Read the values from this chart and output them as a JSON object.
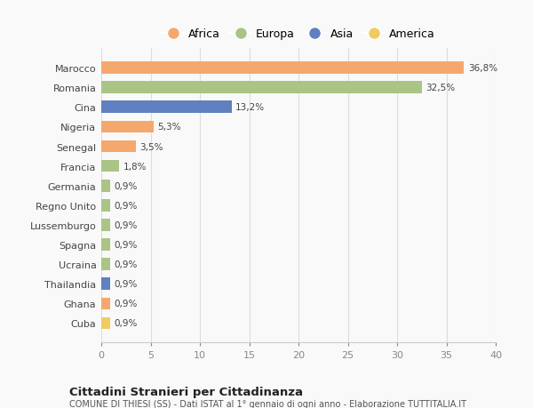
{
  "categories": [
    "Cuba",
    "Ghana",
    "Thailandia",
    "Ucraina",
    "Spagna",
    "Lussemburgo",
    "Regno Unito",
    "Germania",
    "Francia",
    "Senegal",
    "Nigeria",
    "Cina",
    "Romania",
    "Marocco"
  ],
  "values": [
    0.9,
    0.9,
    0.9,
    0.9,
    0.9,
    0.9,
    0.9,
    0.9,
    1.8,
    3.5,
    5.3,
    13.2,
    32.5,
    36.8
  ],
  "labels": [
    "0,9%",
    "0,9%",
    "0,9%",
    "0,9%",
    "0,9%",
    "0,9%",
    "0,9%",
    "0,9%",
    "1,8%",
    "3,5%",
    "5,3%",
    "13,2%",
    "32,5%",
    "36,8%"
  ],
  "continent_map": {
    "Cuba": "America",
    "Ghana": "Africa",
    "Thailandia": "Asia",
    "Ucraina": "Europa",
    "Spagna": "Europa",
    "Lussemburgo": "Europa",
    "Regno Unito": "Europa",
    "Germania": "Europa",
    "Francia": "Europa",
    "Senegal": "Africa",
    "Nigeria": "Africa",
    "Cina": "Asia",
    "Romania": "Europa",
    "Marocco": "Africa"
  },
  "continent_colors": {
    "Africa": "#f5a86e",
    "Europa": "#aac486",
    "Asia": "#6080c0",
    "America": "#f0cc60"
  },
  "title": "Cittadini Stranieri per Cittadinanza",
  "subtitle": "COMUNE DI THIESI (SS) - Dati ISTAT al 1° gennaio di ogni anno - Elaborazione TUTTITALIA.IT",
  "xlim": [
    0,
    40
  ],
  "xticks": [
    0,
    5,
    10,
    15,
    20,
    25,
    30,
    35,
    40
  ],
  "background_color": "#f9f9f9",
  "grid_color": "#dddddd"
}
